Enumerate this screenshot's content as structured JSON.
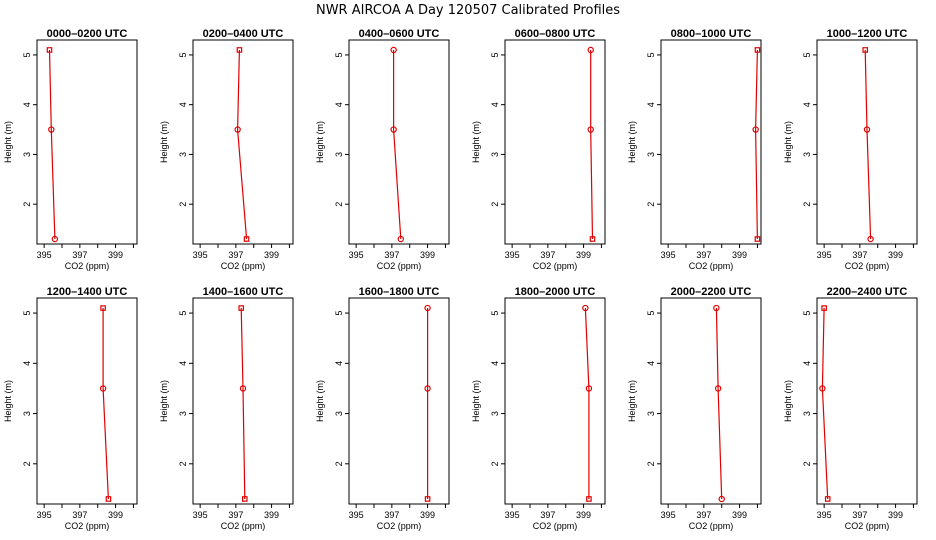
{
  "figure": {
    "title": "NWR AIRCOA A  Day 120507  Calibrated Profiles"
  },
  "colors": {
    "series": "#e00000",
    "axes": "#000000"
  },
  "chart_data": [
    {
      "type": "line",
      "title": "0000–0200 UTC",
      "xlabel": "CO2 (ppm)",
      "ylabel": "Height (m)",
      "xlim": [
        394.6,
        400.2
      ],
      "ylim": [
        1.2,
        5.3
      ],
      "x": [
        395.6,
        395.4,
        395.3
      ],
      "y": [
        1.3,
        3.5,
        5.1
      ],
      "xticks": [
        "395",
        "397",
        "399"
      ],
      "yticks": [
        "2",
        "3",
        "4",
        "5"
      ],
      "marker_shapes": [
        "circle",
        "circle",
        "square"
      ]
    },
    {
      "type": "line",
      "title": "0200–0400 UTC",
      "xlabel": "CO2 (ppm)",
      "ylabel": "Height (m)",
      "xlim": [
        394.6,
        400.2
      ],
      "ylim": [
        1.2,
        5.3
      ],
      "x": [
        397.6,
        397.1,
        397.2
      ],
      "y": [
        1.3,
        3.5,
        5.1
      ],
      "xticks": [
        "395",
        "397",
        "399"
      ],
      "yticks": [
        "2",
        "3",
        "4",
        "5"
      ],
      "marker_shapes": [
        "square",
        "circle",
        "square"
      ]
    },
    {
      "type": "line",
      "title": "0400–0600 UTC",
      "xlabel": "CO2 (ppm)",
      "ylabel": "Height (m)",
      "xlim": [
        394.6,
        400.2
      ],
      "ylim": [
        1.2,
        5.3
      ],
      "x": [
        397.5,
        397.1,
        397.1
      ],
      "y": [
        1.3,
        3.5,
        5.1
      ],
      "xticks": [
        "395",
        "397",
        "399"
      ],
      "yticks": [
        "2",
        "3",
        "4",
        "5"
      ],
      "marker_shapes": [
        "circle",
        "circle",
        "circle"
      ]
    },
    {
      "type": "line",
      "title": "0600–0800 UTC",
      "xlabel": "CO2 (ppm)",
      "ylabel": "Height (m)",
      "xlim": [
        394.6,
        400.2
      ],
      "ylim": [
        1.2,
        5.3
      ],
      "x": [
        399.5,
        399.4,
        399.4
      ],
      "y": [
        1.3,
        3.5,
        5.1
      ],
      "xticks": [
        "395",
        "397",
        "399"
      ],
      "yticks": [
        "2",
        "3",
        "4",
        "5"
      ],
      "marker_shapes": [
        "square",
        "circle",
        "circle"
      ]
    },
    {
      "type": "line",
      "title": "0800–1000 UTC",
      "xlabel": "CO2 (ppm)",
      "ylabel": "Height (m)",
      "xlim": [
        394.6,
        400.2
      ],
      "ylim": [
        1.2,
        5.3
      ],
      "x": [
        400.0,
        399.9,
        400.0
      ],
      "y": [
        1.3,
        3.5,
        5.1
      ],
      "xticks": [
        "395",
        "397",
        "399"
      ],
      "yticks": [
        "2",
        "3",
        "4",
        "5"
      ],
      "marker_shapes": [
        "square",
        "circle",
        "square"
      ]
    },
    {
      "type": "line",
      "title": "1000–1200 UTC",
      "xlabel": "CO2 (ppm)",
      "ylabel": "Height (m)",
      "xlim": [
        394.6,
        400.2
      ],
      "ylim": [
        1.2,
        5.3
      ],
      "x": [
        397.6,
        397.4,
        397.3
      ],
      "y": [
        1.3,
        3.5,
        5.1
      ],
      "xticks": [
        "395",
        "397",
        "399"
      ],
      "yticks": [
        "2",
        "3",
        "4",
        "5"
      ],
      "marker_shapes": [
        "circle",
        "circle",
        "square"
      ]
    },
    {
      "type": "line",
      "title": "1200–1400 UTC",
      "xlabel": "CO2 (ppm)",
      "ylabel": "Height (m)",
      "xlim": [
        394.6,
        400.2
      ],
      "ylim": [
        1.2,
        5.3
      ],
      "x": [
        398.6,
        398.3,
        398.3
      ],
      "y": [
        1.3,
        3.5,
        5.1
      ],
      "xticks": [
        "395",
        "397",
        "399"
      ],
      "yticks": [
        "2",
        "3",
        "4",
        "5"
      ],
      "marker_shapes": [
        "square",
        "circle",
        "square"
      ]
    },
    {
      "type": "line",
      "title": "1400–1600 UTC",
      "xlabel": "CO2 (ppm)",
      "ylabel": "Height (m)",
      "xlim": [
        394.6,
        400.2
      ],
      "ylim": [
        1.2,
        5.3
      ],
      "x": [
        397.5,
        397.4,
        397.3
      ],
      "y": [
        1.3,
        3.5,
        5.1
      ],
      "xticks": [
        "395",
        "397",
        "399"
      ],
      "yticks": [
        "2",
        "3",
        "4",
        "5"
      ],
      "marker_shapes": [
        "square",
        "circle",
        "square"
      ]
    },
    {
      "type": "line",
      "title": "1600–1800 UTC",
      "xlabel": "CO2 (ppm)",
      "ylabel": "Height (m)",
      "xlim": [
        394.6,
        400.2
      ],
      "ylim": [
        1.2,
        5.3
      ],
      "x": [
        399.0,
        399.0,
        399.0
      ],
      "y": [
        1.3,
        3.5,
        5.1
      ],
      "xticks": [
        "395",
        "397",
        "399"
      ],
      "yticks": [
        "2",
        "3",
        "4",
        "5"
      ],
      "marker_shapes": [
        "square",
        "circle",
        "circle"
      ]
    },
    {
      "type": "line",
      "title": "1800–2000 UTC",
      "xlabel": "CO2 (ppm)",
      "ylabel": "Height (m)",
      "xlim": [
        394.6,
        400.2
      ],
      "ylim": [
        1.2,
        5.3
      ],
      "x": [
        399.3,
        399.3,
        399.1
      ],
      "y": [
        1.3,
        3.5,
        5.1
      ],
      "xticks": [
        "395",
        "397",
        "399"
      ],
      "yticks": [
        "2",
        "3",
        "4",
        "5"
      ],
      "marker_shapes": [
        "square",
        "circle",
        "circle"
      ]
    },
    {
      "type": "line",
      "title": "2000–2200 UTC",
      "xlabel": "CO2 (ppm)",
      "ylabel": "Height (m)",
      "xlim": [
        394.6,
        400.2
      ],
      "ylim": [
        1.2,
        5.3
      ],
      "x": [
        398.0,
        397.8,
        397.7
      ],
      "y": [
        1.3,
        3.5,
        5.1
      ],
      "xticks": [
        "395",
        "397",
        "399"
      ],
      "yticks": [
        "2",
        "3",
        "4",
        "5"
      ],
      "marker_shapes": [
        "circle",
        "circle",
        "circle"
      ]
    },
    {
      "type": "line",
      "title": "2200–2400 UTC",
      "xlabel": "CO2 (ppm)",
      "ylabel": "Height (m)",
      "xlim": [
        394.6,
        400.2
      ],
      "ylim": [
        1.2,
        5.3
      ],
      "x": [
        395.2,
        394.9,
        395.0
      ],
      "y": [
        1.3,
        3.5,
        5.1
      ],
      "xticks": [
        "395",
        "397",
        "399"
      ],
      "yticks": [
        "2",
        "3",
        "4",
        "5"
      ],
      "marker_shapes": [
        "square",
        "circle",
        "square"
      ]
    }
  ]
}
